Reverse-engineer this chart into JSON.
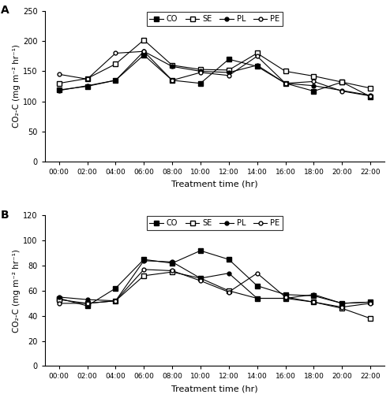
{
  "x_labels": [
    "00:00",
    "02:00",
    "04:00",
    "06:00",
    "08:00",
    "10:00",
    "12:00",
    "14:00",
    "16:00",
    "18:00",
    "20:00",
    "22:00"
  ],
  "panel_A": {
    "CO": [
      119,
      125,
      135,
      177,
      135,
      130,
      170,
      158,
      130,
      117,
      132,
      108
    ],
    "SE": [
      130,
      138,
      162,
      202,
      160,
      153,
      152,
      180,
      150,
      142,
      132,
      122
    ],
    "PL": [
      118,
      126,
      135,
      183,
      158,
      150,
      148,
      160,
      130,
      126,
      118,
      110
    ],
    "PE": [
      145,
      137,
      180,
      183,
      135,
      148,
      143,
      175,
      130,
      133,
      117,
      109
    ]
  },
  "panel_B": {
    "CO": [
      54,
      48,
      62,
      85,
      82,
      92,
      85,
      64,
      57,
      56,
      50,
      51
    ],
    "SE": [
      53,
      50,
      52,
      72,
      75,
      70,
      60,
      54,
      54,
      51,
      46,
      38
    ],
    "PL": [
      55,
      53,
      52,
      84,
      83,
      70,
      74,
      54,
      54,
      57,
      50,
      51
    ],
    "PE": [
      50,
      50,
      52,
      77,
      76,
      68,
      59,
      74,
      55,
      51,
      47,
      50
    ]
  },
  "ylabel": "CO₂-C (mg m⁻² hr⁻¹)",
  "xlabel": "Treatment time (hr)",
  "panel_A_ylim": [
    0,
    250
  ],
  "panel_B_ylim": [
    0,
    120
  ],
  "panel_A_yticks": [
    0,
    50,
    100,
    150,
    200,
    250
  ],
  "panel_B_yticks": [
    0,
    20,
    40,
    60,
    80,
    100,
    120
  ],
  "legend_labels": [
    "CO",
    "SE",
    "PL",
    "PE"
  ],
  "panel_A_label": "A",
  "panel_B_label": "B"
}
